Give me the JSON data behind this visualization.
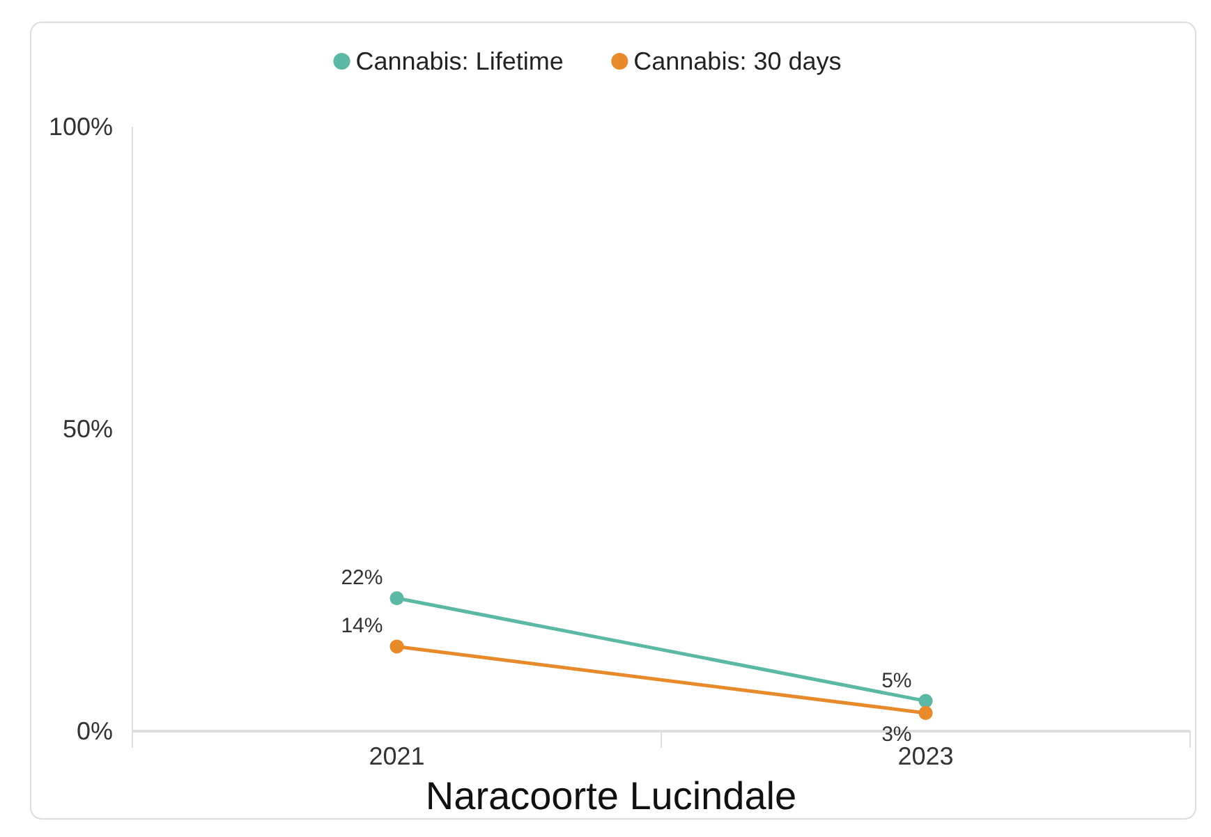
{
  "chart_data": {
    "type": "line",
    "xlabel": "Naracoorte Lucindale",
    "categories": [
      "2021",
      "2023"
    ],
    "series": [
      {
        "name": "Cannabis: Lifetime",
        "color": "#5bb8a4",
        "values": [
          22,
          5
        ],
        "value_labels": [
          "22%",
          "5%"
        ]
      },
      {
        "name": "Cannabis: 30 days",
        "color": "#e8892a",
        "values": [
          14,
          3
        ],
        "value_labels": [
          "14%",
          "3%"
        ]
      }
    ],
    "ylim": [
      0,
      100
    ],
    "yticks": [
      {
        "value": 0,
        "label": "0%"
      },
      {
        "value": 50,
        "label": "50%"
      },
      {
        "value": 100,
        "label": "100%"
      }
    ],
    "grid": false,
    "legend": "top",
    "marker": "circle"
  }
}
